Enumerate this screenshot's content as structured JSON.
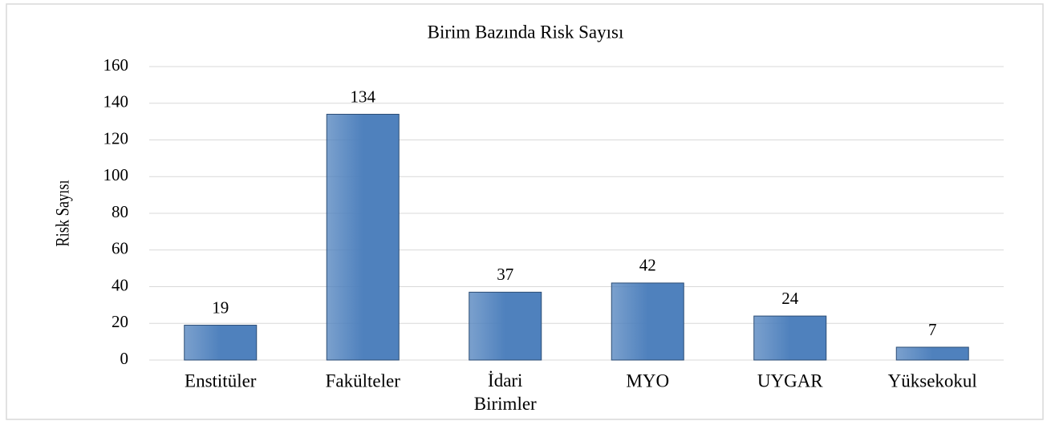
{
  "chart_data": {
    "type": "bar",
    "title": "Birim Bazında Risk Sayısı",
    "y_label": "Risk Sayısı",
    "categories": [
      "Enstitüler",
      "Fakülteler",
      "İdari Birimler",
      "MYO",
      "UYGAR",
      "Yüksekokul"
    ],
    "values": [
      19,
      134,
      37,
      42,
      24,
      7
    ],
    "color": "#4f81bd",
    "ylim": [
      0,
      160
    ],
    "yticks": [
      0,
      20,
      40,
      60,
      80,
      100,
      120,
      140,
      160
    ],
    "grid": true
  }
}
